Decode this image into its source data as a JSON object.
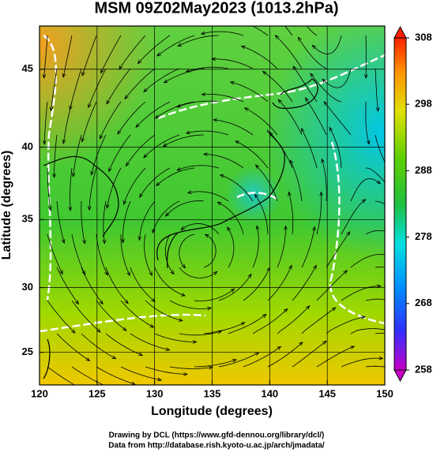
{
  "title": "MSM 09Z02May2023 (1013.2hPa)",
  "x_label": "Longitude (degrees)",
  "y_label": "Latitude  (degrees)",
  "projection": "mercator",
  "xlim": [
    120,
    150
  ],
  "xticks": [
    120,
    125,
    130,
    135,
    140,
    145,
    150
  ],
  "ylim": [
    22.4,
    47.6
  ],
  "yticks": [
    25,
    30,
    35,
    40,
    45
  ],
  "colorbar_lim": [
    258,
    308
  ],
  "colorbar_ticks": [
    258,
    268,
    278,
    288,
    298,
    308
  ],
  "credits": [
    "Drawing by DCL (https://www.gfd-dennou.org/library/dcl/)",
    "Data from http://database.rish.kyoto-u.ac.jp/arch/jmadata/"
  ]
}
